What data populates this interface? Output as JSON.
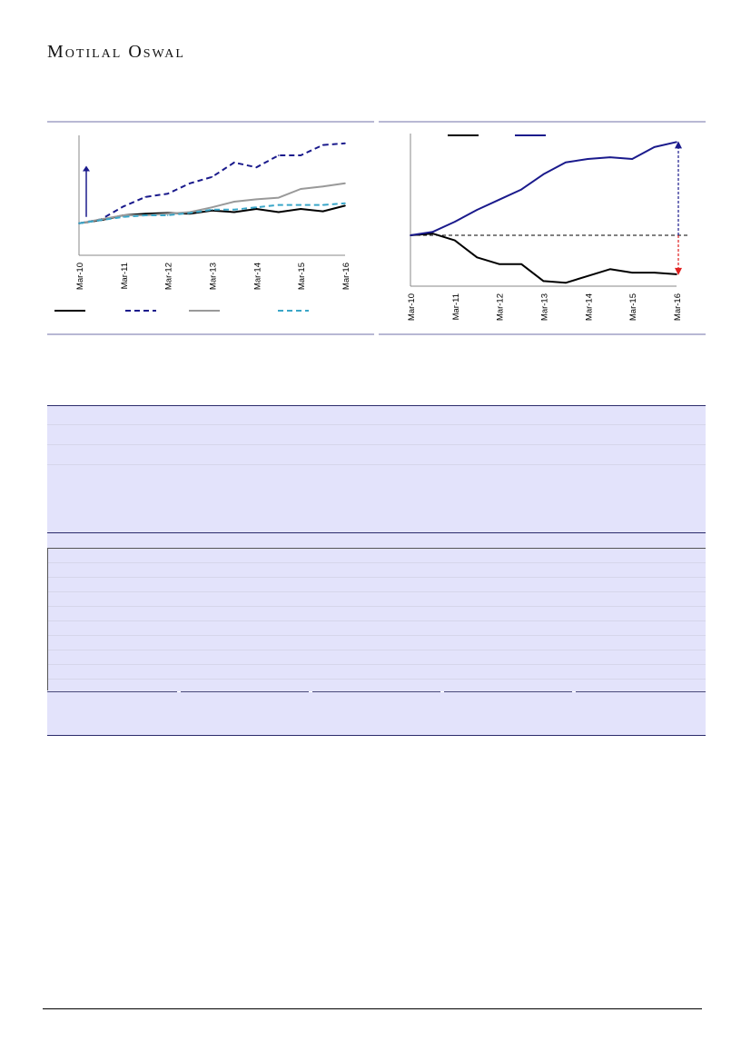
{
  "header": {
    "brand": "Motilal Oswal"
  },
  "chart_data": [
    {
      "type": "line",
      "x": [
        "Mar-10",
        "Sep-10",
        "Mar-11",
        "Sep-11",
        "Mar-12",
        "Sep-12",
        "Mar-13",
        "Sep-13",
        "Mar-14",
        "Sep-14",
        "Mar-15",
        "Sep-15",
        "Mar-16"
      ],
      "series": [
        {
          "values": [
            100,
            104,
            110,
            112,
            113,
            112,
            116,
            114,
            118,
            114,
            118,
            115,
            122
          ],
          "color": "#000000",
          "style": "solid"
        },
        {
          "values": [
            100,
            105,
            121,
            133,
            137,
            150,
            158,
            176,
            170,
            185,
            185,
            198,
            200
          ],
          "color": "#1a1a8c",
          "style": "dashed"
        },
        {
          "values": [
            100,
            105,
            110,
            110,
            112,
            114,
            120,
            127,
            130,
            132,
            143,
            146,
            150
          ],
          "color": "#999999",
          "style": "solid"
        },
        {
          "values": [
            100,
            104,
            108,
            110,
            110,
            113,
            117,
            117,
            120,
            123,
            123,
            123,
            125
          ],
          "color": "#3aa6c8",
          "style": "dashed"
        }
      ],
      "xticks": [
        "Mar-10",
        "Mar-11",
        "Mar-12",
        "Mar-13",
        "Mar-14",
        "Mar-15",
        "Mar-16"
      ],
      "ylim": [
        60,
        210
      ],
      "annotation": "arrow-up"
    },
    {
      "type": "line",
      "x": [
        "Mar-10",
        "Sep-10",
        "Mar-11",
        "Sep-11",
        "Mar-12",
        "Sep-12",
        "Mar-13",
        "Sep-13",
        "Mar-14",
        "Sep-14",
        "Mar-15",
        "Sep-15",
        "Mar-16"
      ],
      "series": [
        {
          "values": [
            100,
            101,
            97,
            87,
            83,
            83,
            73,
            72,
            76,
            80,
            78,
            78,
            77
          ],
          "color": "#000000",
          "style": "solid"
        },
        {
          "values": [
            100,
            102,
            108,
            115,
            121,
            127,
            136,
            143,
            145,
            146,
            145,
            152,
            155
          ],
          "color": "#1a1a8c",
          "style": "solid"
        }
      ],
      "xticks": [
        "Mar-10",
        "Mar-11",
        "Mar-12",
        "Mar-13",
        "Mar-14",
        "Mar-15",
        "Mar-16"
      ],
      "ylim": [
        70,
        160
      ],
      "reference_line": 100,
      "annotation": "divergence-arrows"
    }
  ]
}
